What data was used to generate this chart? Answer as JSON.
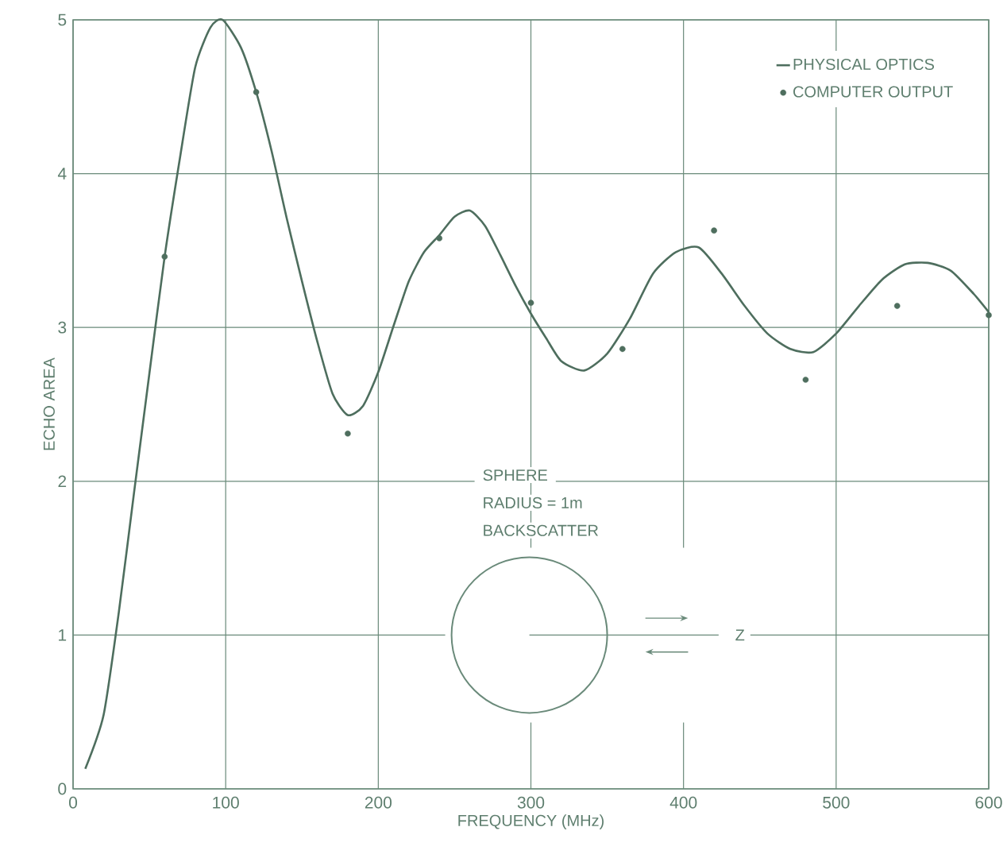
{
  "chart_data": {
    "type": "line",
    "xlabel": "FREQUENCY (MHz)",
    "ylabel": "ECHO AREA",
    "xlim": [
      0,
      600
    ],
    "ylim": [
      0,
      5
    ],
    "xticks": [
      0,
      100,
      200,
      300,
      400,
      500,
      600
    ],
    "yticks": [
      0,
      1,
      2,
      3,
      4,
      5
    ],
    "grid": true,
    "legend": "top right",
    "line_style": "solid",
    "annotations": [
      "SPHERE",
      "RADIUS = 1m",
      "BACKSCATTER",
      "Z"
    ],
    "series": [
      {
        "name": "PHYSICAL OPTICS",
        "marker": "none",
        "color": "#4e6e5e",
        "x": [
          8,
          20,
          30,
          40,
          50,
          60,
          70,
          80,
          90,
          98,
          110,
          120,
          130,
          140,
          150,
          160,
          170,
          180,
          190,
          200,
          210,
          220,
          230,
          240,
          250,
          260,
          270,
          280,
          290,
          300,
          310,
          320,
          335,
          350,
          365,
          380,
          395,
          410,
          425,
          440,
          455,
          470,
          485,
          500,
          515,
          530,
          545,
          560,
          575,
          590,
          600
        ],
        "values": [
          0.13,
          0.48,
          1.15,
          1.93,
          2.7,
          3.46,
          4.1,
          4.69,
          4.95,
          5.0,
          4.82,
          4.53,
          4.15,
          3.71,
          3.3,
          2.91,
          2.57,
          2.43,
          2.49,
          2.71,
          3.01,
          3.3,
          3.49,
          3.6,
          3.72,
          3.76,
          3.66,
          3.47,
          3.27,
          3.09,
          2.93,
          2.78,
          2.72,
          2.83,
          3.06,
          3.35,
          3.49,
          3.52,
          3.35,
          3.14,
          2.96,
          2.86,
          2.84,
          2.96,
          3.14,
          3.31,
          3.41,
          3.42,
          3.37,
          3.22,
          3.1
        ]
      },
      {
        "name": "COMPUTER OUTPUT",
        "type": "scatter",
        "marker": "circle",
        "color": "#4e6e5e",
        "x": [
          60,
          120,
          180,
          240,
          300,
          360,
          420,
          480,
          540,
          600
        ],
        "values": [
          3.46,
          4.53,
          2.31,
          3.58,
          3.16,
          2.86,
          3.63,
          2.66,
          3.14,
          3.08
        ]
      }
    ]
  }
}
